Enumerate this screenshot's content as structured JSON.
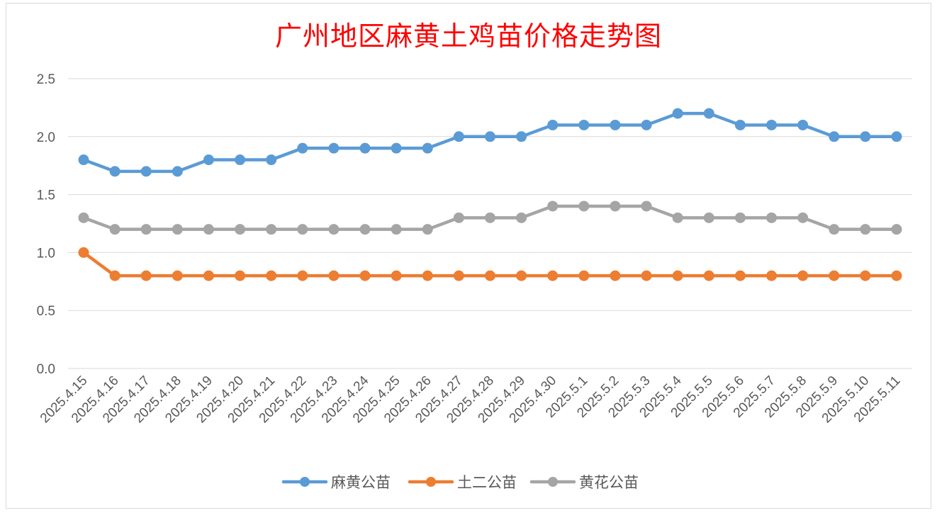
{
  "chart_data": {
    "type": "line",
    "title": "广州地区麻黄土鸡苗价格走势图",
    "xlabel": "",
    "ylabel": "",
    "ylim": [
      0,
      2.5
    ],
    "yticks": [
      "0.0",
      "0.5",
      "1.0",
      "1.5",
      "2.0",
      "2.5"
    ],
    "categories": [
      "2025.4.15",
      "2025.4.16",
      "2025.4.17",
      "2025.4.18",
      "2025.4.19",
      "2025.4.20",
      "2025.4.21",
      "2025.4.22",
      "2025.4.23",
      "2025.4.24",
      "2025.4.25",
      "2025.4.26",
      "2025.4.27",
      "2025.4.28",
      "2025.4.29",
      "2025.4.30",
      "2025.5.1",
      "2025.5.2",
      "2025.5.3",
      "2025.5.4",
      "2025.5.5",
      "2025.5.6",
      "2025.5.7",
      "2025.5.8",
      "2025.5.9",
      "2025.5.10",
      "2025.5.11"
    ],
    "series": [
      {
        "name": "麻黄公苗",
        "color": "#5b9bd5",
        "values": [
          1.8,
          1.7,
          1.7,
          1.7,
          1.8,
          1.8,
          1.8,
          1.9,
          1.9,
          1.9,
          1.9,
          1.9,
          2.0,
          2.0,
          2.0,
          2.1,
          2.1,
          2.1,
          2.1,
          2.2,
          2.2,
          2.1,
          2.1,
          2.1,
          2.0,
          2.0,
          2.0
        ]
      },
      {
        "name": "土二公苗",
        "color": "#ed7d31",
        "values": [
          1.0,
          0.8,
          0.8,
          0.8,
          0.8,
          0.8,
          0.8,
          0.8,
          0.8,
          0.8,
          0.8,
          0.8,
          0.8,
          0.8,
          0.8,
          0.8,
          0.8,
          0.8,
          0.8,
          0.8,
          0.8,
          0.8,
          0.8,
          0.8,
          0.8,
          0.8,
          0.8
        ]
      },
      {
        "name": "黄花公苗",
        "color": "#a5a5a5",
        "values": [
          1.3,
          1.2,
          1.2,
          1.2,
          1.2,
          1.2,
          1.2,
          1.2,
          1.2,
          1.2,
          1.2,
          1.2,
          1.3,
          1.3,
          1.3,
          1.4,
          1.4,
          1.4,
          1.4,
          1.3,
          1.3,
          1.3,
          1.3,
          1.3,
          1.2,
          1.2,
          1.2
        ]
      }
    ],
    "grid": true,
    "legend_position": "bottom"
  }
}
